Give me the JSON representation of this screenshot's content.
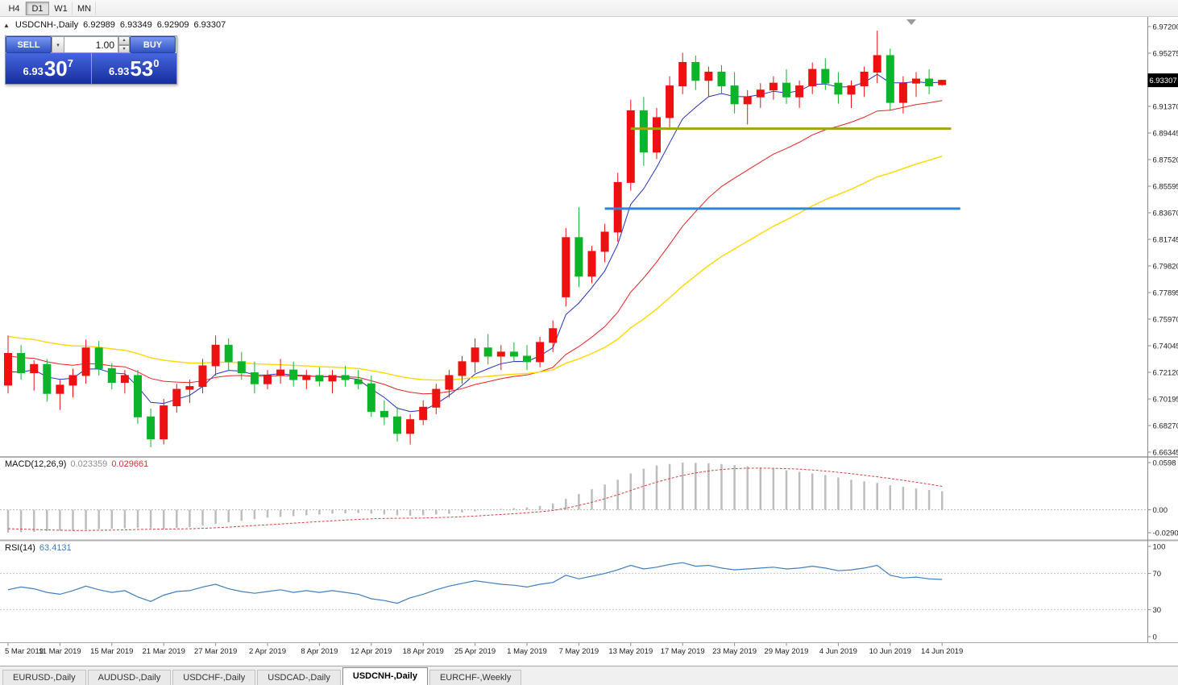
{
  "toolbar": {
    "timeframes": [
      {
        "label": "H4",
        "active": false
      },
      {
        "label": "D1",
        "active": true
      },
      {
        "label": "W1",
        "active": false
      },
      {
        "label": "MN",
        "active": false
      }
    ]
  },
  "chart_header": {
    "symbol": "USDCNH-,Daily",
    "open": "6.92989",
    "high": "6.93349",
    "low": "6.92909",
    "close": "6.93307"
  },
  "trade_panel": {
    "sell_label": "SELL",
    "buy_label": "BUY",
    "volume": "1.00",
    "sell_price": {
      "prefix": "6.93",
      "big": "30",
      "sup": "7"
    },
    "buy_price": {
      "prefix": "6.93",
      "big": "53",
      "sup": "0"
    }
  },
  "price_axis": {
    "labels": [
      "6.97200",
      "6.95275",
      "6.93350",
      "6.91370",
      "6.89445",
      "6.87520",
      "6.85595",
      "6.83670",
      "6.81745",
      "6.79820",
      "6.77895",
      "6.75970",
      "6.74045",
      "6.72120",
      "6.70195",
      "6.68270",
      "6.66345"
    ],
    "current_label": "6.93307"
  },
  "colors": {
    "candle_up": "#ee1111",
    "candle_down": "#0cb42a",
    "ma_fast": "#2233bb",
    "ma_mid": "#e82222",
    "ma_slow": "#ffd800",
    "hline_olive": "#a0a410",
    "hline_blue": "#2e86d8",
    "macd_bar": "#bdbdbd",
    "macd_signal": "#d84040",
    "rsi_line": "#3f7fbf",
    "badge_bg": "#000000",
    "badge_text": "#ffffff"
  },
  "chart_data": {
    "type": "candlestick",
    "symbol": "USDCNH-,Daily",
    "timeframe": "Daily",
    "current_price": 6.93307,
    "label_every": 4,
    "price_axis": {
      "max": 6.972,
      "min": 6.66345,
      "step": 0.01925
    },
    "candles": {
      "columns": [
        "date",
        "open",
        "high",
        "low",
        "close"
      ],
      "rows": [
        [
          "5 Mar 2019",
          6.712,
          6.748,
          6.706,
          6.735
        ],
        [
          "6 Mar 2019",
          6.735,
          6.741,
          6.716,
          6.721
        ],
        [
          "7 Mar 2019",
          6.721,
          6.73,
          6.708,
          6.727
        ],
        [
          "8 Mar 2019",
          6.727,
          6.731,
          6.7,
          6.706
        ],
        [
          "11 Mar 2019",
          6.706,
          6.716,
          6.694,
          6.712
        ],
        [
          "12 Mar 2019",
          6.712,
          6.724,
          6.703,
          6.719
        ],
        [
          "13 Mar 2019",
          6.719,
          6.745,
          6.713,
          6.739
        ],
        [
          "14 Mar 2019",
          6.739,
          6.744,
          6.719,
          6.724
        ],
        [
          "15 Mar 2019",
          6.724,
          6.728,
          6.709,
          6.714
        ],
        [
          "18 Mar 2019",
          6.714,
          6.723,
          6.706,
          6.719
        ],
        [
          "19 Mar 2019",
          6.719,
          6.723,
          6.684,
          6.689
        ],
        [
          "20 Mar 2019",
          6.689,
          6.695,
          6.667,
          6.673
        ],
        [
          "21 Mar 2019",
          6.673,
          6.702,
          6.669,
          6.697
        ],
        [
          "22 Mar 2019",
          6.697,
          6.713,
          6.692,
          6.709
        ],
        [
          "25 Mar 2019",
          6.709,
          6.716,
          6.699,
          6.711
        ],
        [
          "26 Mar 2019",
          6.711,
          6.731,
          6.706,
          6.726
        ],
        [
          "27 Mar 2019",
          6.726,
          6.748,
          6.719,
          6.741
        ],
        [
          "28 Mar 2019",
          6.741,
          6.746,
          6.723,
          6.729
        ],
        [
          "29 Mar 2019",
          6.729,
          6.736,
          6.716,
          6.721
        ],
        [
          "1 Apr 2019",
          6.721,
          6.729,
          6.706,
          6.713
        ],
        [
          "2 Apr 2019",
          6.713,
          6.723,
          6.709,
          6.719
        ],
        [
          "3 Apr 2019",
          6.719,
          6.731,
          6.713,
          6.723
        ],
        [
          "4 Apr 2019",
          6.723,
          6.729,
          6.711,
          6.716
        ],
        [
          "5 Apr 2019",
          6.716,
          6.723,
          6.709,
          6.719
        ],
        [
          "8 Apr 2019",
          6.719,
          6.725,
          6.711,
          6.715
        ],
        [
          "9 Apr 2019",
          6.715,
          6.723,
          6.706,
          6.719
        ],
        [
          "10 Apr 2019",
          6.719,
          6.726,
          6.711,
          6.716
        ],
        [
          "11 Apr 2019",
          6.716,
          6.723,
          6.709,
          6.713
        ],
        [
          "12 Apr 2019",
          6.713,
          6.719,
          6.689,
          6.693
        ],
        [
          "15 Apr 2019",
          6.693,
          6.701,
          6.683,
          6.689
        ],
        [
          "16 Apr 2019",
          6.689,
          6.696,
          6.671,
          6.677
        ],
        [
          "17 Apr 2019",
          6.677,
          6.691,
          6.669,
          6.687
        ],
        [
          "18 Apr 2019",
          6.687,
          6.701,
          6.683,
          6.696
        ],
        [
          "22 Apr 2019",
          6.696,
          6.713,
          6.691,
          6.709
        ],
        [
          "23 Apr 2019",
          6.709,
          6.723,
          6.703,
          6.719
        ],
        [
          "24 Apr 2019",
          6.719,
          6.733,
          6.713,
          6.729
        ],
        [
          "25 Apr 2019",
          6.729,
          6.746,
          6.721,
          6.739
        ],
        [
          "26 Apr 2019",
          6.739,
          6.749,
          6.727,
          6.733
        ],
        [
          "29 Apr 2019",
          6.733,
          6.741,
          6.723,
          6.736
        ],
        [
          "30 Apr 2019",
          6.736,
          6.743,
          6.729,
          6.733
        ],
        [
          "1 May 2019",
          6.733,
          6.741,
          6.723,
          6.729
        ],
        [
          "2 May 2019",
          6.729,
          6.747,
          6.725,
          6.743
        ],
        [
          "3 May 2019",
          6.743,
          6.759,
          6.736,
          6.753
        ],
        [
          "6 May 2019",
          6.776,
          6.826,
          6.769,
          6.819
        ],
        [
          "7 May 2019",
          6.819,
          6.841,
          6.783,
          6.791
        ],
        [
          "8 May 2019",
          6.791,
          6.813,
          6.786,
          6.809
        ],
        [
          "9 May 2019",
          6.809,
          6.829,
          6.801,
          6.823
        ],
        [
          "10 May 2019",
          6.823,
          6.866,
          6.816,
          6.859
        ],
        [
          "13 May 2019",
          6.859,
          6.919,
          6.853,
          6.911
        ],
        [
          "14 May 2019",
          6.911,
          6.921,
          6.871,
          6.881
        ],
        [
          "15 May 2019",
          6.881,
          6.913,
          6.876,
          6.906
        ],
        [
          "16 May 2019",
          6.906,
          6.936,
          6.899,
          6.929
        ],
        [
          "17 May 2019",
          6.929,
          6.953,
          6.923,
          6.946
        ],
        [
          "20 May 2019",
          6.946,
          6.951,
          6.926,
          6.933
        ],
        [
          "21 May 2019",
          6.933,
          6.943,
          6.921,
          6.939
        ],
        [
          "22 May 2019",
          6.939,
          6.944,
          6.923,
          6.929
        ],
        [
          "23 May 2019",
          6.929,
          6.939,
          6.909,
          6.916
        ],
        [
          "24 May 2019",
          6.916,
          6.926,
          6.901,
          6.921
        ],
        [
          "27 May 2019",
          6.921,
          6.931,
          6.913,
          6.926
        ],
        [
          "28 May 2019",
          6.926,
          6.936,
          6.919,
          6.931
        ],
        [
          "29 May 2019",
          6.931,
          6.941,
          6.916,
          6.921
        ],
        [
          "30 May 2019",
          6.921,
          6.933,
          6.913,
          6.929
        ],
        [
          "31 May 2019",
          6.929,
          6.946,
          6.923,
          6.941
        ],
        [
          "3 Jun 2019",
          6.941,
          6.949,
          6.926,
          6.931
        ],
        [
          "4 Jun 2019",
          6.931,
          6.939,
          6.916,
          6.923
        ],
        [
          "5 Jun 2019",
          6.923,
          6.933,
          6.913,
          6.929
        ],
        [
          "6 Jun 2019",
          6.929,
          6.943,
          6.921,
          6.939
        ],
        [
          "7 Jun 2019",
          6.939,
          6.969,
          6.931,
          6.951
        ],
        [
          "10 Jun 2019",
          6.951,
          6.956,
          6.911,
          6.917
        ],
        [
          "11 Jun 2019",
          6.917,
          6.936,
          6.909,
          6.931
        ],
        [
          "12 Jun 2019",
          6.931,
          6.939,
          6.921,
          6.934
        ],
        [
          "13 Jun 2019",
          6.934,
          6.941,
          6.923,
          6.929
        ],
        [
          "14 Jun 2019",
          6.92989,
          6.93349,
          6.92909,
          6.93307
        ]
      ]
    },
    "overlays": {
      "moving_averages": [
        {
          "name": "fast-ma",
          "color": "#2233bb",
          "seed": 6.716,
          "alpha": 0.3,
          "width": 1
        },
        {
          "name": "mid-ma",
          "color": "#e82222",
          "seed": 6.733,
          "alpha": 0.1,
          "width": 1
        },
        {
          "name": "slow-ma",
          "color": "#ffd800",
          "seed": 6.748,
          "alpha": 0.05,
          "width": 1.4
        }
      ],
      "hlines": [
        {
          "name": "resistance-line",
          "price": 6.898,
          "color": "#a0a410",
          "from_index": 48,
          "to_index": 72.7,
          "width": 3
        },
        {
          "name": "support-line",
          "price": 6.84,
          "color": "#2e86d8",
          "from_index": 46,
          "to_index": 73.4,
          "width": 3
        }
      ]
    },
    "indicators": {
      "macd": {
        "label": "MACD(12,26,9)",
        "value_main": "0.023359",
        "value_signal": "0.029661",
        "axis_max": 0.0598,
        "axis_min": -0.029049,
        "axis_labels": [
          "0.0598",
          "0.00",
          "-0.029049"
        ],
        "histogram": [
          -0.029049,
          -0.0285,
          -0.028,
          -0.027,
          -0.0265,
          -0.026,
          -0.025,
          -0.0245,
          -0.024,
          -0.0235,
          -0.023,
          -0.0235,
          -0.024,
          -0.023,
          -0.022,
          -0.02,
          -0.018,
          -0.016,
          -0.014,
          -0.012,
          -0.01,
          -0.009,
          -0.008,
          -0.007,
          -0.006,
          -0.005,
          -0.0045,
          -0.004,
          -0.005,
          -0.006,
          -0.007,
          -0.0075,
          -0.007,
          -0.006,
          -0.005,
          -0.0035,
          -0.002,
          -0.0005,
          0.001,
          0.002,
          0.003,
          0.005,
          0.008,
          0.014,
          0.02,
          0.026,
          0.032,
          0.038,
          0.046,
          0.052,
          0.056,
          0.058,
          0.0598,
          0.0595,
          0.059,
          0.058,
          0.0565,
          0.055,
          0.0535,
          0.052,
          0.05,
          0.048,
          0.046,
          0.044,
          0.041,
          0.038,
          0.036,
          0.034,
          0.031,
          0.029,
          0.027,
          0.025,
          0.023359
        ],
        "signal": [
          -0.024,
          -0.0245,
          -0.025,
          -0.0255,
          -0.026,
          -0.0262,
          -0.0262,
          -0.026,
          -0.0258,
          -0.0255,
          -0.025,
          -0.0247,
          -0.0245,
          -0.0243,
          -0.024,
          -0.0235,
          -0.0228,
          -0.022,
          -0.021,
          -0.02,
          -0.019,
          -0.018,
          -0.017,
          -0.016,
          -0.015,
          -0.014,
          -0.013,
          -0.0122,
          -0.0115,
          -0.011,
          -0.0108,
          -0.0107,
          -0.0105,
          -0.01,
          -0.0095,
          -0.0088,
          -0.008,
          -0.007,
          -0.006,
          -0.005,
          -0.0038,
          -0.0025,
          -0.001,
          0.002,
          0.0055,
          0.0095,
          0.014,
          0.019,
          0.0245,
          0.03,
          0.035,
          0.0395,
          0.0435,
          0.0467,
          0.0492,
          0.051,
          0.0521,
          0.0527,
          0.0528,
          0.0526,
          0.0521,
          0.0514,
          0.0504,
          0.0491,
          0.0475,
          0.0457,
          0.0438,
          0.0418,
          0.0396,
          0.0373,
          0.0349,
          0.0324,
          0.029661
        ]
      },
      "rsi": {
        "label": "RSI(14)",
        "value": "63.4131",
        "axis_labels": [
          "100",
          "70",
          "30",
          "0"
        ],
        "levels": [
          70,
          30
        ],
        "values": [
          52,
          55,
          53,
          49,
          47,
          51,
          56,
          52,
          49,
          51,
          44,
          39,
          46,
          50,
          51,
          55,
          58,
          53,
          50,
          48,
          50,
          52,
          49,
          51,
          49,
          51,
          49,
          47,
          42,
          40,
          37,
          43,
          47,
          52,
          56,
          59,
          62,
          60,
          58,
          57,
          55,
          58,
          60,
          68,
          64,
          67,
          70,
          74,
          79,
          75,
          77,
          80,
          82,
          78,
          79,
          76,
          74,
          75,
          76,
          77,
          75,
          76,
          78,
          76,
          73,
          74,
          76,
          79,
          68,
          65,
          66,
          64,
          63.4131
        ]
      }
    }
  },
  "bottom_tabs": [
    {
      "label": "EURUSD-,Daily",
      "active": false
    },
    {
      "label": "AUDUSD-,Daily",
      "active": false
    },
    {
      "label": "USDCHF-,Daily",
      "active": false
    },
    {
      "label": "USDCAD-,Daily",
      "active": false
    },
    {
      "label": "USDCNH-,Daily",
      "active": true
    },
    {
      "label": "EURCHF-,Weekly",
      "active": false
    }
  ]
}
